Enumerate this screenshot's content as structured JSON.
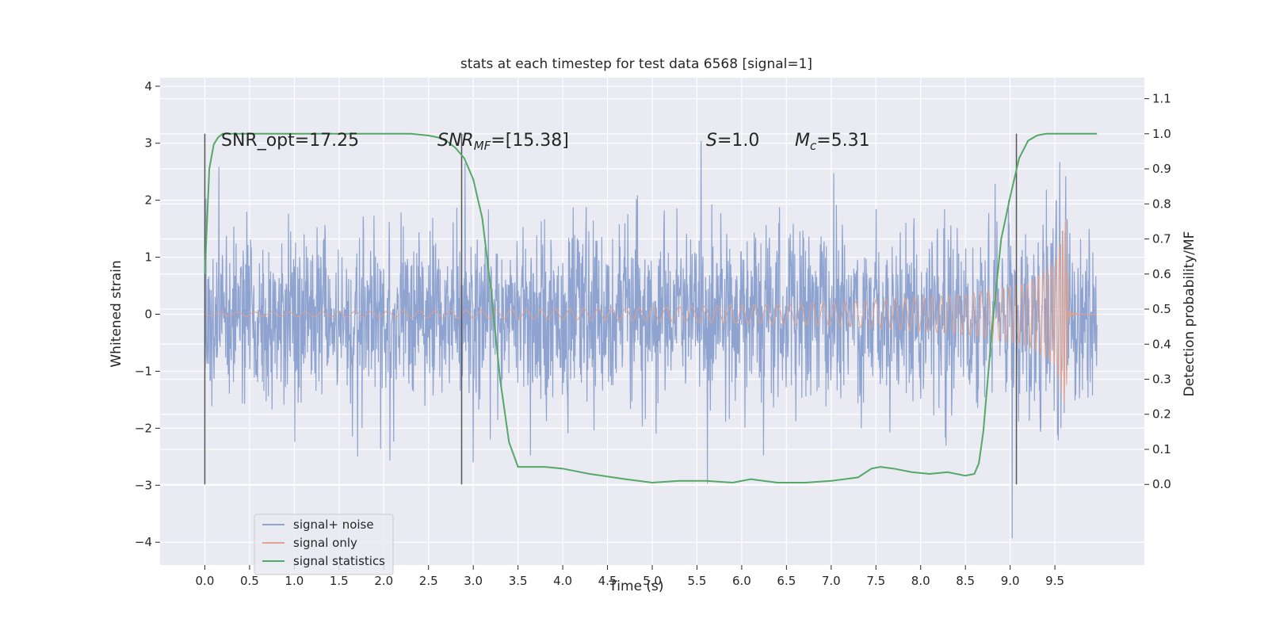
{
  "chart_data": {
    "type": "line",
    "title": "stats at each timestep for test data 6568 [signal=1]",
    "xlabel": "Time (s)",
    "ylabel": "Whitened strain",
    "y2label": "Detection probability/MF",
    "xlim": [
      -0.5,
      10.5
    ],
    "ylim": [
      -4.4,
      4.15
    ],
    "y2lim": [
      -0.23,
      1.16
    ],
    "xticks": [
      "0.0",
      "0.5",
      "1.0",
      "1.5",
      "2.0",
      "2.5",
      "3.0",
      "3.5",
      "4.0",
      "4.5",
      "5.0",
      "5.5",
      "6.0",
      "6.5",
      "7.0",
      "7.5",
      "8.0",
      "8.5",
      "9.0",
      "9.5"
    ],
    "yticks": [
      "4",
      "3",
      "2",
      "1",
      "0",
      "−1",
      "−2",
      "−3",
      "−4"
    ],
    "y2ticks": [
      "1.1",
      "1.0",
      "0.9",
      "0.8",
      "0.7",
      "0.6",
      "0.5",
      "0.4",
      "0.3",
      "0.2",
      "0.1",
      "0.0"
    ],
    "grid": true,
    "legend_position": "lower-left",
    "annotations": {
      "snr_opt": "SNR_opt=17.25",
      "snr_mf": "SNR_MF=[15.38]",
      "s_stat": "S=1.0",
      "mc": "M_c=5.31"
    },
    "vertical_lines_x": [
      0.0,
      2.87,
      9.07
    ],
    "series": [
      {
        "name": "signal+ noise",
        "color": "#8ea3cf",
        "description": "whitened noisy strain, 0 to 10 s, amplitude mostly within ±1.7 with spikes up to ±3.8"
      },
      {
        "name": "signal only",
        "color": "#e0a28e",
        "description": "chirp growing in amplitude to ~1.7 at merger near 9.65 s",
        "merger_time": 9.65,
        "envelope": [
          {
            "t": 0.0,
            "a": 0.03
          },
          {
            "t": 3.0,
            "a": 0.07
          },
          {
            "t": 5.0,
            "a": 0.12
          },
          {
            "t": 7.0,
            "a": 0.2
          },
          {
            "t": 8.5,
            "a": 0.35
          },
          {
            "t": 9.2,
            "a": 0.55
          },
          {
            "t": 9.5,
            "a": 0.9
          },
          {
            "t": 9.62,
            "a": 1.7
          },
          {
            "t": 9.66,
            "a": 0.05
          }
        ]
      },
      {
        "name": "signal statistics",
        "color": "#55a868",
        "x": [
          0.0,
          0.05,
          0.1,
          0.15,
          0.2,
          0.3,
          0.5,
          1.0,
          1.5,
          2.0,
          2.3,
          2.5,
          2.6,
          2.7,
          2.8,
          2.9,
          3.0,
          3.1,
          3.2,
          3.3,
          3.4,
          3.5,
          3.6,
          3.8,
          4.0,
          4.3,
          4.7,
          5.0,
          5.3,
          5.6,
          5.9,
          6.1,
          6.4,
          6.7,
          7.0,
          7.3,
          7.45,
          7.55,
          7.7,
          7.9,
          8.1,
          8.3,
          8.5,
          8.6,
          8.65,
          8.7,
          8.75,
          8.8,
          8.9,
          9.0,
          9.1,
          9.2,
          9.3,
          9.4,
          9.6,
          9.8,
          9.97
        ],
        "y": [
          0.6,
          0.9,
          0.97,
          0.99,
          1.0,
          1.0,
          1.0,
          1.0,
          1.0,
          1.0,
          1.0,
          0.995,
          0.99,
          0.98,
          0.96,
          0.93,
          0.87,
          0.76,
          0.55,
          0.3,
          0.12,
          0.05,
          0.05,
          0.05,
          0.045,
          0.03,
          0.015,
          0.005,
          0.01,
          0.01,
          0.005,
          0.015,
          0.005,
          0.005,
          0.01,
          0.02,
          0.045,
          0.05,
          0.045,
          0.035,
          0.03,
          0.035,
          0.025,
          0.03,
          0.06,
          0.15,
          0.3,
          0.45,
          0.7,
          0.82,
          0.93,
          0.98,
          0.995,
          1.0,
          1.0,
          1.0,
          1.0
        ]
      }
    ]
  }
}
